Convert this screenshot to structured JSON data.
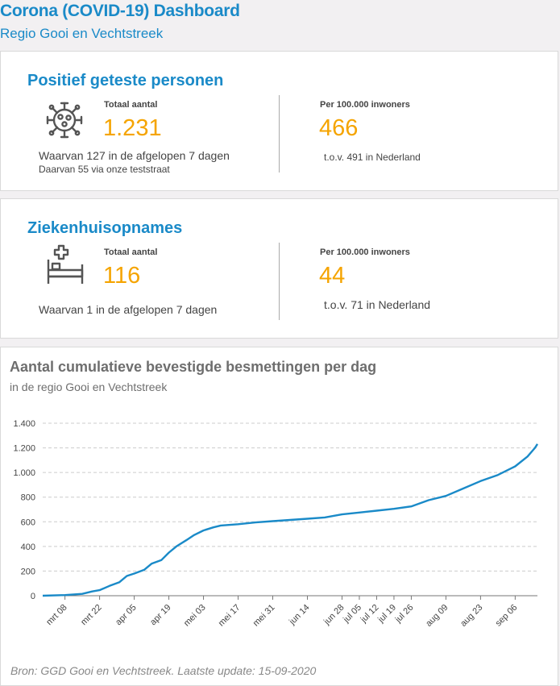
{
  "header": {
    "title": "Corona (COVID-19) Dashboard",
    "subtitle": "Regio Gooi en Vechtstreek"
  },
  "positive": {
    "title": "Positief geteste personen",
    "icon": "virus-icon",
    "total_label": "Totaal aantal",
    "total_value": "1.231",
    "note1": "Waarvan 127 in de afgelopen 7 dagen",
    "note2": "Daarvan 55 via onze teststraat",
    "per100k_label": "Per 100.000 inwoners",
    "per100k_value": "466",
    "per100k_note": "t.o.v. 491 in Nederland"
  },
  "hospital": {
    "title": "Ziekenhuisopnames",
    "icon": "hospital-bed-icon",
    "total_label": "Totaal aantal",
    "total_value": "116",
    "note1": "Waarvan 1 in de afgelopen 7 dagen",
    "per100k_label": "Per 100.000 inwoners",
    "per100k_value": "44",
    "per100k_note": "t.o.v. 71 in Nederland"
  },
  "chart": {
    "title": "Aantal cumulatieve bevestigde besmettingen per dag",
    "subtitle": "in de regio Gooi en Vechtstreek",
    "source": "Bron: GGD Gooi en Vechtstreek. Laatste update: 15-09-2020"
  },
  "colors": {
    "accent": "#1a8ac8",
    "number": "#f5a400",
    "line": "#1a8ac8"
  },
  "chart_data": {
    "type": "line",
    "title": "Aantal cumulatieve bevestigde besmettingen per dag",
    "subtitle": "in de regio Gooi en Vechtstreek",
    "ylim": [
      0,
      1400
    ],
    "y_ticks": [
      0,
      200,
      400,
      600,
      800,
      1000,
      1200,
      1400
    ],
    "y_tick_labels": [
      "0",
      "200",
      "400",
      "600",
      "800",
      "1.000",
      "1.200",
      "1.400"
    ],
    "x_ticks": [
      "2020-03-08",
      "2020-03-22",
      "2020-04-05",
      "2020-04-19",
      "2020-05-03",
      "2020-05-17",
      "2020-05-31",
      "2020-06-14",
      "2020-06-28",
      "2020-07-05",
      "2020-07-12",
      "2020-07-19",
      "2020-07-26",
      "2020-08-09",
      "2020-08-23",
      "2020-09-06"
    ],
    "x_tick_labels": [
      "mrt 08",
      "mrt 22",
      "apr 05",
      "apr 19",
      "mei 03",
      "mei 17",
      "mei 31",
      "jun 14",
      "jun 28",
      "jul 05",
      "jul 12",
      "jul 19",
      "jul 26",
      "aug 09",
      "aug 23",
      "sep 06"
    ],
    "grid": true,
    "series": [
      {
        "color": "#1a8ac8",
        "x": [
          "2020-02-28",
          "2020-03-08",
          "2020-03-15",
          "2020-03-19",
          "2020-03-22",
          "2020-03-26",
          "2020-03-30",
          "2020-04-02",
          "2020-04-05",
          "2020-04-09",
          "2020-04-12",
          "2020-04-16",
          "2020-04-19",
          "2020-04-22",
          "2020-04-26",
          "2020-04-29",
          "2020-05-03",
          "2020-05-07",
          "2020-05-10",
          "2020-05-17",
          "2020-05-24",
          "2020-05-31",
          "2020-06-07",
          "2020-06-14",
          "2020-06-21",
          "2020-06-28",
          "2020-07-05",
          "2020-07-12",
          "2020-07-19",
          "2020-07-26",
          "2020-08-02",
          "2020-08-09",
          "2020-08-16",
          "2020-08-23",
          "2020-08-30",
          "2020-09-06",
          "2020-09-11",
          "2020-09-14",
          "2020-09-15"
        ],
        "y": [
          0,
          5,
          15,
          35,
          45,
          80,
          110,
          160,
          180,
          210,
          260,
          290,
          350,
          400,
          450,
          490,
          530,
          555,
          570,
          580,
          595,
          605,
          615,
          625,
          635,
          660,
          675,
          690,
          705,
          725,
          775,
          810,
          870,
          930,
          980,
          1050,
          1130,
          1200,
          1231
        ]
      }
    ]
  }
}
